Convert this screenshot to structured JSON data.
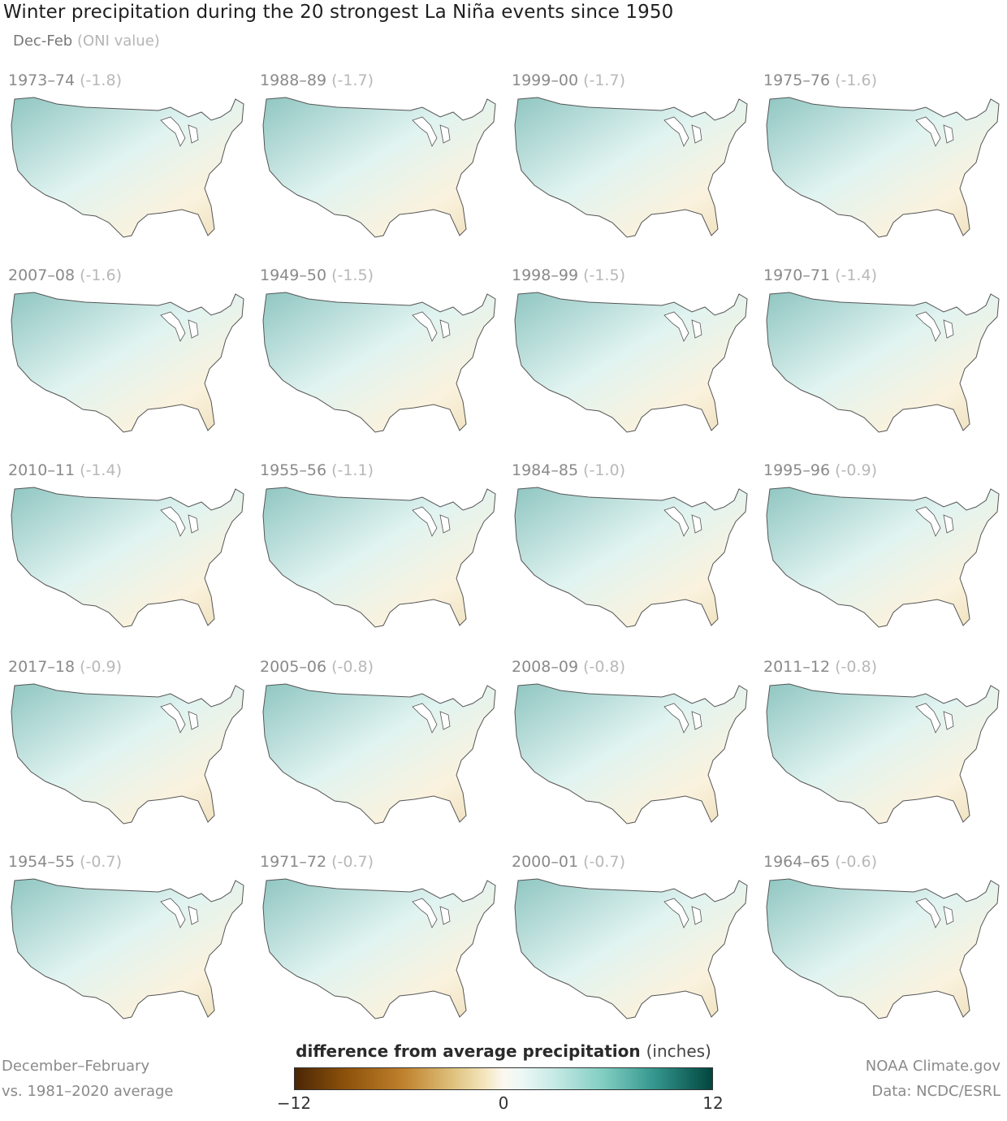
{
  "header": {
    "title": "Winter precipitation during the 20 strongest La Niña events since 1950",
    "subtitle_main": "Dec-Feb",
    "subtitle_muted": "(ONI value)"
  },
  "panels": [
    {
      "years": "1973–74",
      "oni": "(-1.8)"
    },
    {
      "years": "1988–89",
      "oni": "(-1.7)"
    },
    {
      "years": "1999–00",
      "oni": "(-1.7)"
    },
    {
      "years": "1975–76",
      "oni": "(-1.6)"
    },
    {
      "years": "2007–08",
      "oni": "(-1.6)"
    },
    {
      "years": "1949–50",
      "oni": "(-1.5)"
    },
    {
      "years": "1998–99",
      "oni": "(-1.5)"
    },
    {
      "years": "1970–71",
      "oni": "(-1.4)"
    },
    {
      "years": "2010–11",
      "oni": "(-1.4)"
    },
    {
      "years": "1955–56",
      "oni": "(-1.1)"
    },
    {
      "years": "1984–85",
      "oni": "(-1.0)"
    },
    {
      "years": "1995–96",
      "oni": "(-0.9)"
    },
    {
      "years": "2017–18",
      "oni": "(-0.9)"
    },
    {
      "years": "2005–06",
      "oni": "(-0.8)"
    },
    {
      "years": "2008–09",
      "oni": "(-0.8)"
    },
    {
      "years": "2011–12",
      "oni": "(-0.8)"
    },
    {
      "years": "1954–55",
      "oni": "(-0.7)"
    },
    {
      "years": "1971–72",
      "oni": "(-0.7)"
    },
    {
      "years": "2000–01",
      "oni": "(-0.7)"
    },
    {
      "years": "1964–65",
      "oni": "(-0.6)"
    }
  ],
  "legend": {
    "title": "difference from average precipitation",
    "unit": "(inches)",
    "min_label": "−12",
    "mid_label": "0",
    "max_label": "12",
    "colors": [
      "#4a2606",
      "#8c510a",
      "#bf812d",
      "#dfc27d",
      "#f6e8c3",
      "#fbf8f0",
      "#c7eae5",
      "#80cdc1",
      "#35978f",
      "#01463e"
    ]
  },
  "footer": {
    "left_line1": "December–February",
    "left_line2": "vs. 1981–2020 average",
    "right_line1": "NOAA Climate.gov",
    "right_line2": "Data: NCDC/ESRL"
  }
}
